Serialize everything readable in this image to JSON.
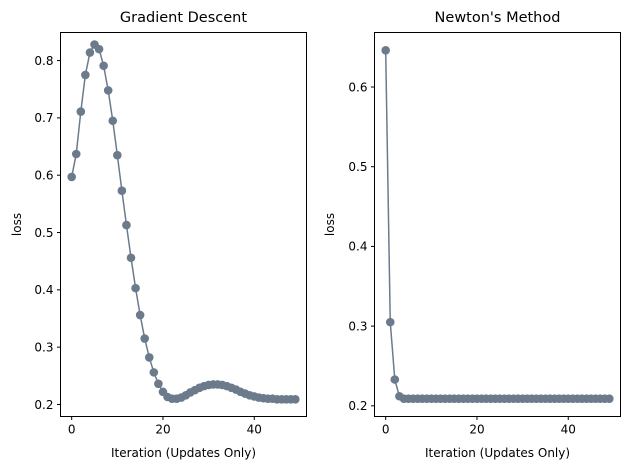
{
  "chart_data": [
    {
      "type": "line",
      "title": "Gradient Descent",
      "xlabel": "Iteration (Updates Only)",
      "ylabel": "loss",
      "xlim": [
        -2.45,
        51.45
      ],
      "ylim": [
        0.179,
        0.849
      ],
      "xticks": [
        0,
        20,
        40
      ],
      "yticks": [
        0.2,
        0.3,
        0.4,
        0.5,
        0.6,
        0.7,
        0.8
      ],
      "ytick_labels": [
        "0.2",
        "0.3",
        "0.4",
        "0.5",
        "0.6",
        "0.7",
        "0.8"
      ],
      "marker": "circle",
      "color": "#6b7b8c",
      "grid": false,
      "series": [
        {
          "x": [
            0,
            1,
            2,
            3,
            4,
            5,
            6,
            7,
            8,
            9,
            10,
            11,
            12,
            13,
            14,
            15,
            16,
            17,
            18,
            19,
            20,
            21,
            22,
            23,
            24,
            25,
            26,
            27,
            28,
            29,
            30,
            31,
            32,
            33,
            34,
            35,
            36,
            37,
            38,
            39,
            40,
            41,
            42,
            43,
            44,
            45,
            46,
            47,
            48,
            49
          ],
          "y": [
            0.597,
            0.637,
            0.711,
            0.775,
            0.814,
            0.828,
            0.82,
            0.791,
            0.748,
            0.695,
            0.635,
            0.573,
            0.513,
            0.456,
            0.403,
            0.356,
            0.315,
            0.282,
            0.256,
            0.236,
            0.222,
            0.213,
            0.21,
            0.21,
            0.212,
            0.216,
            0.221,
            0.225,
            0.229,
            0.232,
            0.234,
            0.235,
            0.235,
            0.234,
            0.232,
            0.229,
            0.226,
            0.222,
            0.219,
            0.216,
            0.214,
            0.212,
            0.211,
            0.21,
            0.21,
            0.209,
            0.209,
            0.209,
            0.209,
            0.209
          ]
        }
      ]
    },
    {
      "type": "line",
      "title": "Newton's Method",
      "xlabel": "Iteration (Updates Only)",
      "ylabel": "loss",
      "xlim": [
        -2.45,
        51.45
      ],
      "ylim": [
        0.1866,
        0.6684
      ],
      "xticks": [
        0,
        20,
        40
      ],
      "yticks": [
        0.2,
        0.3,
        0.4,
        0.5,
        0.6
      ],
      "ytick_labels": [
        "0.2",
        "0.3",
        "0.4",
        "0.5",
        "0.6"
      ],
      "marker": "circle",
      "color": "#6b7b8c",
      "grid": false,
      "series": [
        {
          "x": [
            0,
            1,
            2,
            3,
            4,
            5,
            6,
            7,
            8,
            9,
            10,
            11,
            12,
            13,
            14,
            15,
            16,
            17,
            18,
            19,
            20,
            21,
            22,
            23,
            24,
            25,
            26,
            27,
            28,
            29,
            30,
            31,
            32,
            33,
            34,
            35,
            36,
            37,
            38,
            39,
            40,
            41,
            42,
            43,
            44,
            45,
            46,
            47,
            48,
            49
          ],
          "y": [
            0.646,
            0.305,
            0.233,
            0.212,
            0.209,
            0.209,
            0.209,
            0.209,
            0.209,
            0.209,
            0.209,
            0.209,
            0.209,
            0.209,
            0.209,
            0.209,
            0.209,
            0.209,
            0.209,
            0.209,
            0.209,
            0.209,
            0.209,
            0.209,
            0.209,
            0.209,
            0.209,
            0.209,
            0.209,
            0.209,
            0.209,
            0.209,
            0.209,
            0.209,
            0.209,
            0.209,
            0.209,
            0.209,
            0.209,
            0.209,
            0.209,
            0.209,
            0.209,
            0.209,
            0.209,
            0.209,
            0.209,
            0.209,
            0.209,
            0.209
          ]
        }
      ]
    }
  ]
}
